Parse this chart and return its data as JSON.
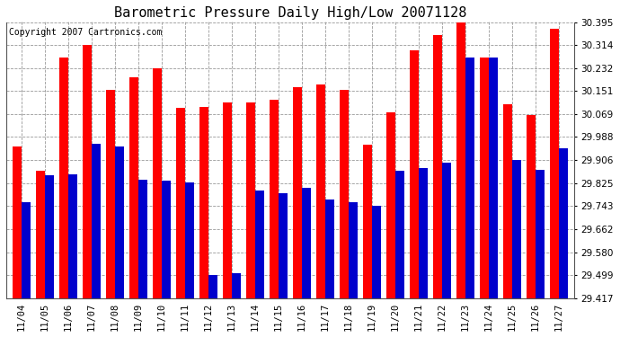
{
  "title": "Barometric Pressure Daily High/Low 20071128",
  "copyright": "Copyright 2007 Cartronics.com",
  "dates": [
    "11/04",
    "11/05",
    "11/06",
    "11/07",
    "11/08",
    "11/09",
    "11/10",
    "11/11",
    "11/12",
    "11/13",
    "11/14",
    "11/15",
    "11/16",
    "11/17",
    "11/18",
    "11/19",
    "11/20",
    "11/21",
    "11/22",
    "11/23",
    "11/24",
    "11/25",
    "11/26",
    "11/27"
  ],
  "highs": [
    29.955,
    29.868,
    30.27,
    30.315,
    30.155,
    30.2,
    30.23,
    30.09,
    30.095,
    30.11,
    30.11,
    30.12,
    30.165,
    30.175,
    30.155,
    29.96,
    30.075,
    30.295,
    30.35,
    30.395,
    30.27,
    30.105,
    30.065,
    30.37
  ],
  "lows": [
    29.756,
    29.853,
    29.855,
    29.965,
    29.955,
    29.838,
    29.835,
    29.828,
    29.498,
    29.507,
    29.797,
    29.788,
    29.807,
    29.768,
    29.757,
    29.743,
    29.868,
    29.877,
    29.898,
    30.268,
    30.268,
    29.908,
    29.872,
    29.948
  ],
  "high_color": "#ff0000",
  "low_color": "#0000cc",
  "bg_color": "#ffffff",
  "plot_bg_color": "#ffffff",
  "grid_color": "#999999",
  "yticks": [
    29.417,
    29.499,
    29.58,
    29.662,
    29.743,
    29.825,
    29.906,
    29.988,
    30.069,
    30.151,
    30.232,
    30.314,
    30.395
  ],
  "ymin": 29.417,
  "ymax": 30.395,
  "bar_width": 0.38,
  "title_fontsize": 11,
  "tick_fontsize": 7.5,
  "copyright_fontsize": 7
}
